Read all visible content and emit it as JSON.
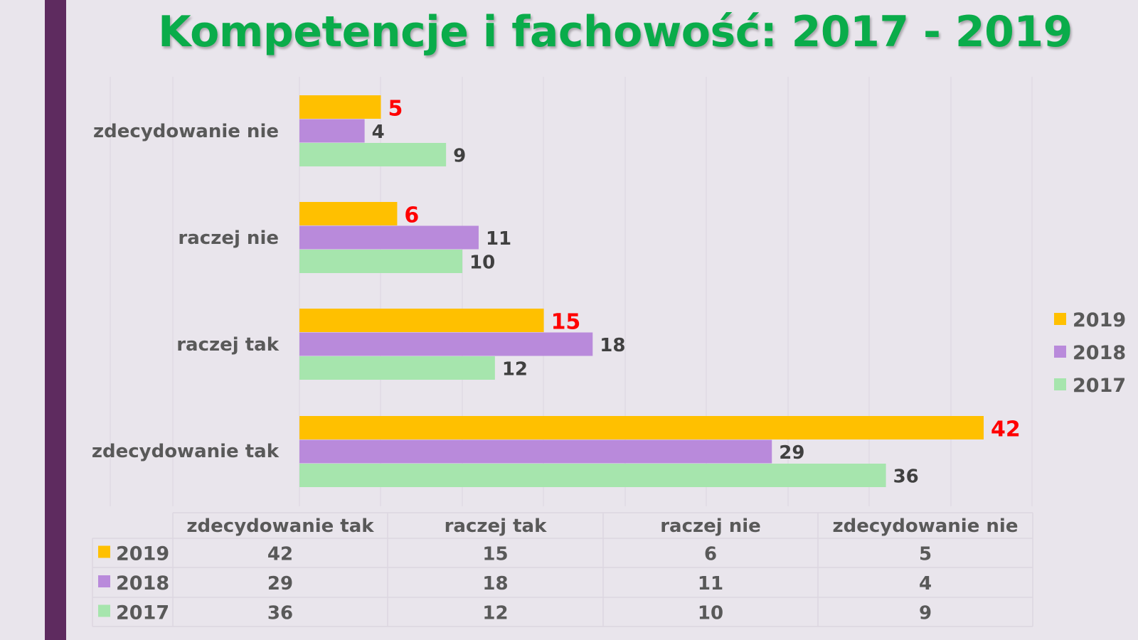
{
  "title": "Kompetencje i fachowość: 2017 - 2019",
  "colors": {
    "2019": "#ffc000",
    "2018": "#b98adb",
    "2017": "#a6e5ad",
    "highlight_label": "#ff0000",
    "accent_bar": "#5e2b5f",
    "title": "#0aac4a"
  },
  "chart_data": {
    "type": "bar",
    "orientation": "horizontal",
    "title": "Kompetencje i fachowość: 2017 - 2019",
    "categories": [
      "zdecydowanie nie",
      "raczej nie",
      "raczej tak",
      "zdecydowanie tak"
    ],
    "series": [
      {
        "name": "2019",
        "values": [
          5,
          6,
          15,
          42
        ]
      },
      {
        "name": "2018",
        "values": [
          4,
          11,
          18,
          29
        ]
      },
      {
        "name": "2017",
        "values": [
          9,
          10,
          12,
          36
        ]
      }
    ],
    "xlim": [
      0,
      45
    ],
    "grid": true,
    "legend": "right",
    "data_table": {
      "columns": [
        "zdecydowanie tak",
        "raczej tak",
        "raczej nie",
        "zdecydowanie nie"
      ],
      "rows": [
        {
          "series": "2019",
          "values": [
            42,
            15,
            6,
            5
          ]
        },
        {
          "series": "2018",
          "values": [
            29,
            18,
            11,
            4
          ]
        },
        {
          "series": "2017",
          "values": [
            36,
            12,
            10,
            9
          ]
        }
      ]
    }
  }
}
